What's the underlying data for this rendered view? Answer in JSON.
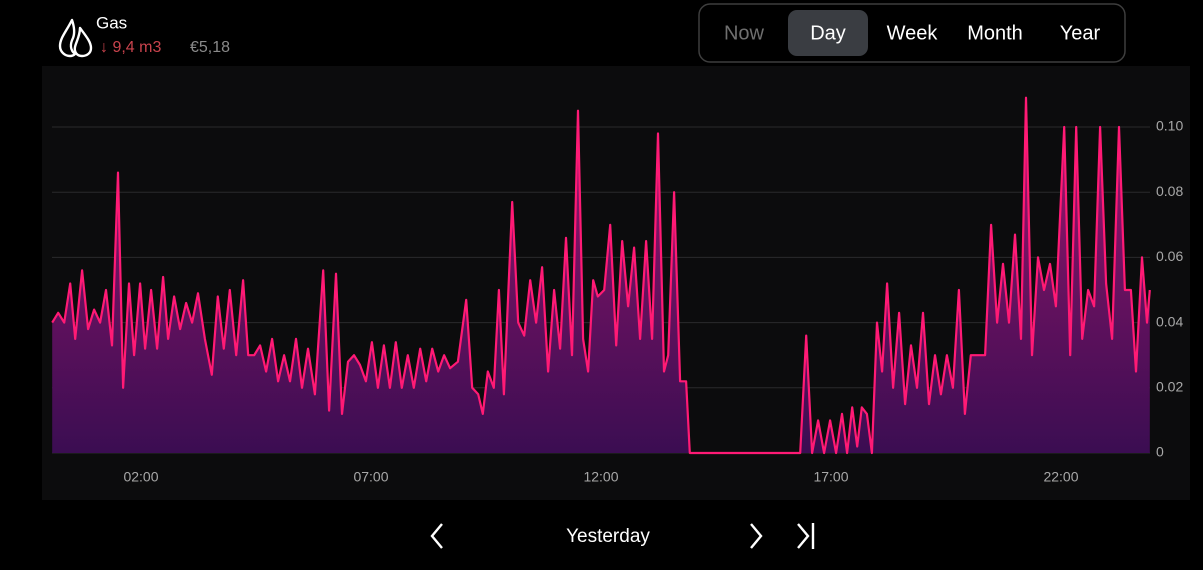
{
  "header": {
    "title": "Gas",
    "usage": "↓ 9,4 m3",
    "cost": "€5,18"
  },
  "tabs": [
    "Now",
    "Day",
    "Week",
    "Month",
    "Year"
  ],
  "selected_tab": 1,
  "navigation": {
    "label": "Yesterday"
  },
  "chart_data": {
    "type": "area",
    "color": "#ff1a75",
    "grid": true,
    "xlim": [
      0,
      24
    ],
    "xticks": [
      {
        "value": 2,
        "label": "02:00"
      },
      {
        "value": 7,
        "label": "07:00"
      },
      {
        "value": 12,
        "label": "12:00"
      },
      {
        "value": 17,
        "label": "17:00"
      },
      {
        "value": 22,
        "label": "22:00"
      }
    ],
    "ylim": [
      0,
      0.11
    ],
    "yticks": [
      0,
      0.02,
      0.04,
      0.06,
      0.08,
      {
        "value": 0.1,
        "label": "0.10"
      }
    ],
    "x": [
      0.07,
      0.2,
      0.33,
      0.46,
      0.57,
      0.72,
      0.85,
      0.98,
      1.11,
      1.24,
      1.37,
      1.5,
      1.61,
      1.74,
      1.85,
      1.98,
      2.09,
      2.22,
      2.35,
      2.48,
      2.59,
      2.72,
      2.85,
      2.98,
      3.11,
      3.24,
      3.39,
      3.54,
      3.67,
      3.8,
      3.93,
      4.07,
      4.22,
      4.33,
      4.46,
      4.59,
      4.72,
      4.85,
      4.98,
      5.11,
      5.24,
      5.37,
      5.5,
      5.63,
      5.78,
      5.96,
      6.09,
      6.24,
      6.37,
      6.5,
      6.63,
      6.76,
      6.89,
      7.02,
      7.15,
      7.28,
      7.41,
      7.54,
      7.67,
      7.8,
      7.93,
      8.07,
      8.2,
      8.33,
      8.46,
      8.59,
      8.72,
      8.89,
      9.07,
      9.2,
      9.33,
      9.43,
      9.54,
      9.67,
      9.78,
      9.89,
      10.07,
      10.2,
      10.33,
      10.46,
      10.59,
      10.72,
      10.85,
      10.98,
      11.11,
      11.24,
      11.37,
      11.5,
      11.61,
      11.72,
      11.83,
      11.93,
      12.07,
      12.2,
      12.33,
      12.46,
      12.59,
      12.72,
      12.85,
      12.98,
      13.11,
      13.24,
      13.37,
      13.46,
      13.59,
      13.72,
      13.85,
      13.93,
      16.33,
      16.46,
      16.59,
      16.72,
      16.85,
      16.98,
      17.11,
      17.24,
      17.35,
      17.46,
      17.57,
      17.67,
      17.78,
      17.89,
      18.0,
      18.11,
      18.22,
      18.35,
      18.48,
      18.61,
      18.74,
      18.87,
      19.0,
      19.13,
      19.26,
      19.39,
      19.52,
      19.65,
      19.78,
      19.91,
      20.04,
      20.17,
      20.35,
      20.48,
      20.61,
      20.74,
      20.87,
      21.0,
      21.13,
      21.24,
      21.37,
      21.5,
      21.63,
      21.76,
      21.89,
      22.07,
      22.2,
      22.33,
      22.46,
      22.59,
      22.72,
      22.85,
      22.98,
      23.11,
      23.26,
      23.39,
      23.52,
      23.63,
      23.76,
      23.87,
      23.93
    ],
    "values": [
      0.04,
      0.043,
      0.04,
      0.052,
      0.035,
      0.056,
      0.038,
      0.044,
      0.04,
      0.05,
      0.033,
      0.086,
      0.02,
      0.052,
      0.03,
      0.052,
      0.032,
      0.05,
      0.032,
      0.054,
      0.035,
      0.048,
      0.038,
      0.046,
      0.04,
      0.049,
      0.035,
      0.024,
      0.048,
      0.032,
      0.05,
      0.03,
      0.053,
      0.03,
      0.03,
      0.033,
      0.025,
      0.035,
      0.022,
      0.03,
      0.022,
      0.035,
      0.02,
      0.032,
      0.018,
      0.056,
      0.013,
      0.055,
      0.012,
      0.028,
      0.03,
      0.027,
      0.022,
      0.034,
      0.02,
      0.033,
      0.02,
      0.034,
      0.02,
      0.03,
      0.02,
      0.032,
      0.022,
      0.032,
      0.025,
      0.03,
      0.026,
      0.028,
      0.047,
      0.02,
      0.018,
      0.012,
      0.025,
      0.02,
      0.05,
      0.018,
      0.077,
      0.04,
      0.036,
      0.053,
      0.04,
      0.057,
      0.025,
      0.05,
      0.032,
      0.066,
      0.03,
      0.105,
      0.035,
      0.025,
      0.053,
      0.048,
      0.05,
      0.07,
      0.033,
      0.065,
      0.045,
      0.063,
      0.035,
      0.065,
      0.035,
      0.098,
      0.025,
      0.03,
      0.08,
      0.022,
      0.022,
      0,
      0,
      0.036,
      0,
      0.01,
      0,
      0.01,
      0,
      0.012,
      0,
      0.014,
      0.002,
      0.014,
      0.012,
      0,
      0.04,
      0.025,
      0.052,
      0.02,
      0.043,
      0.015,
      0.033,
      0.02,
      0.043,
      0.015,
      0.03,
      0.018,
      0.03,
      0.02,
      0.05,
      0.012,
      0.03,
      0.03,
      0.03,
      0.07,
      0.04,
      0.058,
      0.04,
      0.067,
      0.035,
      0.109,
      0.03,
      0.06,
      0.05,
      0.058,
      0.045,
      0.1,
      0.03,
      0.1,
      0.035,
      0.05,
      0.045,
      0.1,
      0.052,
      0.035,
      0.1,
      0.05,
      0.05,
      0.025,
      0.06,
      0.04,
      0.05
    ]
  }
}
